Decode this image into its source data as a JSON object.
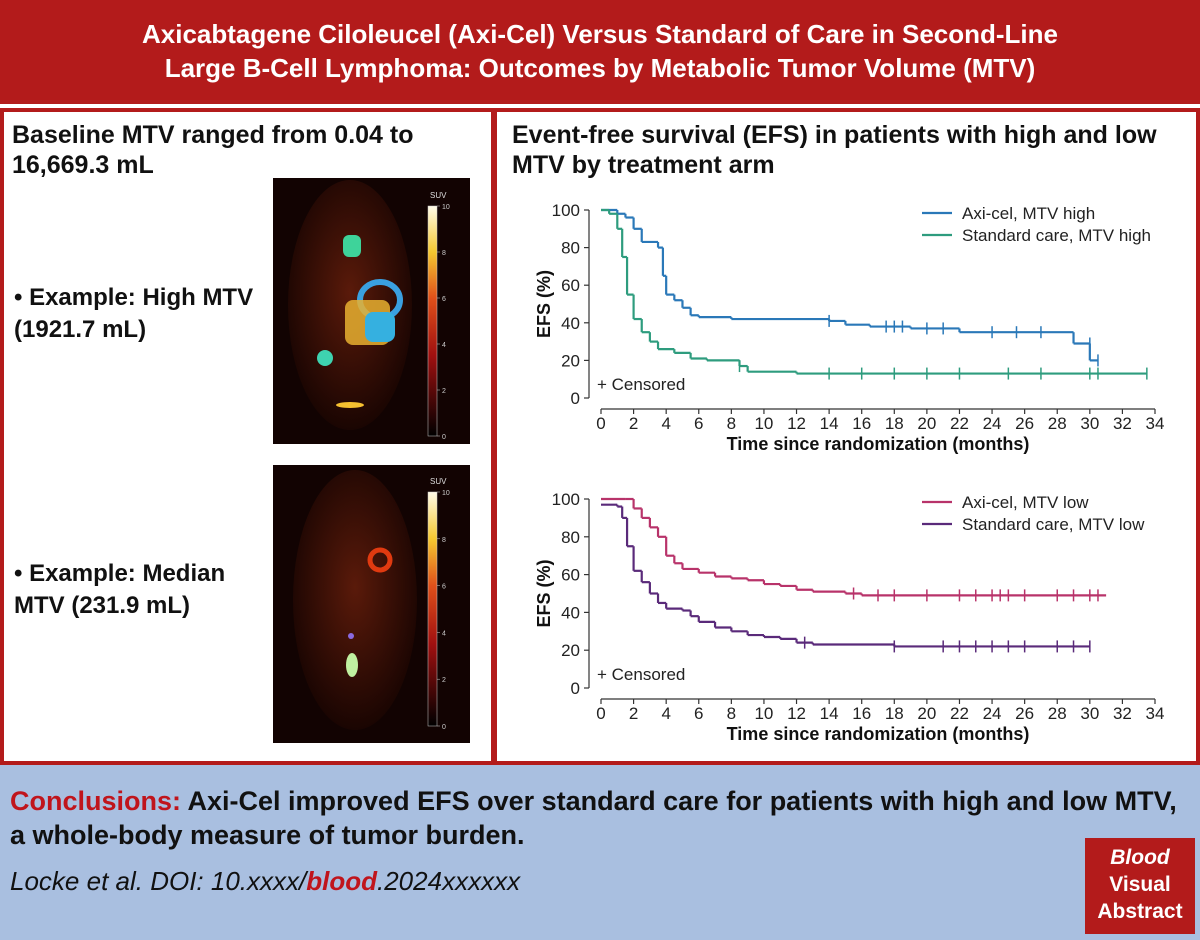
{
  "header": {
    "title_lines": [
      "Axicabtagene Ciloleucel (Axi-Cel) Versus Standard of Care in Second-Line",
      "Large B-Cell Lymphoma: Outcomes by Metabolic Tumor Volume (MTV)"
    ]
  },
  "left_panel": {
    "heading": "Baseline MTV ranged from 0.04 to 16,669.3 mL",
    "examples": [
      "• Example: High MTV (1921.7 mL)",
      "• Example: Median MTV (231.9 mL)"
    ],
    "scans": [
      {
        "colorbar_label": "SUV",
        "colorbar_ticks": [
          0,
          2,
          4,
          6,
          8,
          10
        ]
      },
      {
        "colorbar_label": "SUV",
        "colorbar_ticks": [
          0,
          2,
          4,
          6,
          8,
          10
        ]
      }
    ]
  },
  "right_panel": {
    "heading": "Event-free survival (EFS) in patients with high and low MTV by treatment arm"
  },
  "chart_data": [
    {
      "type": "line",
      "y_label": "EFS (%)",
      "x_label": "Time since randomization (months)",
      "annotation": "+ Censored",
      "legend": "upper right",
      "xlim": [
        0,
        34
      ],
      "ylim": [
        0,
        100
      ],
      "xticks": [
        0,
        2,
        4,
        6,
        8,
        10,
        12,
        14,
        16,
        18,
        20,
        22,
        24,
        26,
        28,
        30,
        32,
        34
      ],
      "yticks": [
        0,
        20,
        40,
        60,
        80,
        100
      ],
      "series": [
        {
          "name": "Axi-cel, MTV high",
          "color": "#2a78b8",
          "x": [
            0,
            1,
            1.5,
            2,
            2.5,
            3.5,
            3.8,
            4,
            4.5,
            5,
            5.5,
            6,
            8,
            14,
            15,
            16.5,
            19,
            22,
            29,
            30,
            30.5
          ],
          "values": [
            100,
            98,
            96,
            90,
            83,
            80,
            65,
            55,
            52,
            48,
            44,
            43,
            42,
            41,
            39,
            38,
            37,
            35,
            29,
            20,
            20
          ],
          "censored_x": [
            14,
            17.5,
            18,
            18.5,
            20,
            21,
            24,
            25.5,
            27,
            30,
            30.5
          ],
          "censored_values": [
            41,
            38,
            38,
            38,
            37,
            37,
            35,
            35,
            35,
            29,
            20
          ]
        },
        {
          "name": "Standard care, MTV high",
          "color": "#2e9c7e",
          "x": [
            0,
            0.5,
            1,
            1.3,
            1.6,
            2,
            2.5,
            3,
            3.5,
            4.5,
            5.5,
            6.5,
            8.5,
            9,
            12,
            33.5
          ],
          "values": [
            100,
            98,
            90,
            75,
            55,
            42,
            35,
            30,
            26,
            24,
            21,
            20,
            17,
            14,
            13,
            13
          ],
          "censored_x": [
            8.5,
            14,
            16,
            18,
            20,
            22,
            25,
            27,
            30,
            30.5,
            33.5
          ],
          "censored_values": [
            17,
            13,
            13,
            13,
            13,
            13,
            13,
            13,
            13,
            13,
            13
          ]
        }
      ]
    },
    {
      "type": "line",
      "y_label": "EFS (%)",
      "x_label": "Time since randomization (months)",
      "annotation": "+ Censored",
      "legend": "upper right",
      "xlim": [
        0,
        34
      ],
      "ylim": [
        0,
        100
      ],
      "xticks": [
        0,
        2,
        4,
        6,
        8,
        10,
        12,
        14,
        16,
        18,
        20,
        22,
        24,
        26,
        28,
        30,
        32,
        34
      ],
      "yticks": [
        0,
        20,
        40,
        60,
        80,
        100
      ],
      "series": [
        {
          "name": "Axi-cel, MTV low",
          "color": "#b8336a",
          "x": [
            0,
            1.5,
            2,
            2.5,
            3,
            3.5,
            4,
            4.5,
            5,
            6,
            7,
            8,
            9,
            10,
            11,
            12,
            13,
            15,
            16,
            31
          ],
          "values": [
            100,
            100,
            95,
            90,
            85,
            80,
            70,
            66,
            63,
            61,
            59,
            58,
            57,
            55,
            54,
            52,
            51,
            50,
            49,
            49
          ],
          "censored_x": [
            15.5,
            17,
            18,
            20,
            22,
            23,
            24,
            24.5,
            25,
            26,
            28,
            29,
            30,
            30.5
          ],
          "censored_values": [
            50,
            49,
            49,
            49,
            49,
            49,
            49,
            49,
            49,
            49,
            49,
            49,
            49,
            49
          ]
        },
        {
          "name": "Standard care, MTV low",
          "color": "#5a2a7a",
          "x": [
            0,
            1,
            1.3,
            1.6,
            2,
            2.5,
            3,
            3.5,
            4,
            5,
            5.5,
            6,
            7,
            8,
            9,
            10,
            11,
            12,
            13,
            17,
            18,
            30
          ],
          "values": [
            97,
            96,
            90,
            75,
            62,
            56,
            50,
            45,
            42,
            41,
            38,
            35,
            32,
            30,
            28,
            27,
            26,
            24,
            23,
            23,
            22,
            22
          ],
          "censored_x": [
            12.5,
            18,
            21,
            22,
            23,
            24,
            25,
            26,
            28,
            29,
            30
          ],
          "censored_values": [
            24,
            22,
            22,
            22,
            22,
            22,
            22,
            22,
            22,
            22,
            22
          ]
        }
      ]
    }
  ],
  "conclusion": {
    "label": "Conclusions:",
    "text": "Axi-Cel improved EFS over standard care for patients with high and low MTV, a whole-body measure of tumor burden."
  },
  "citation": {
    "prefix": "Locke et al. DOI: 10.xxxx/",
    "journal": "blood",
    "suffix": ".2024xxxxxx"
  },
  "badge": [
    "Blood",
    "Visual",
    "Abstract"
  ]
}
